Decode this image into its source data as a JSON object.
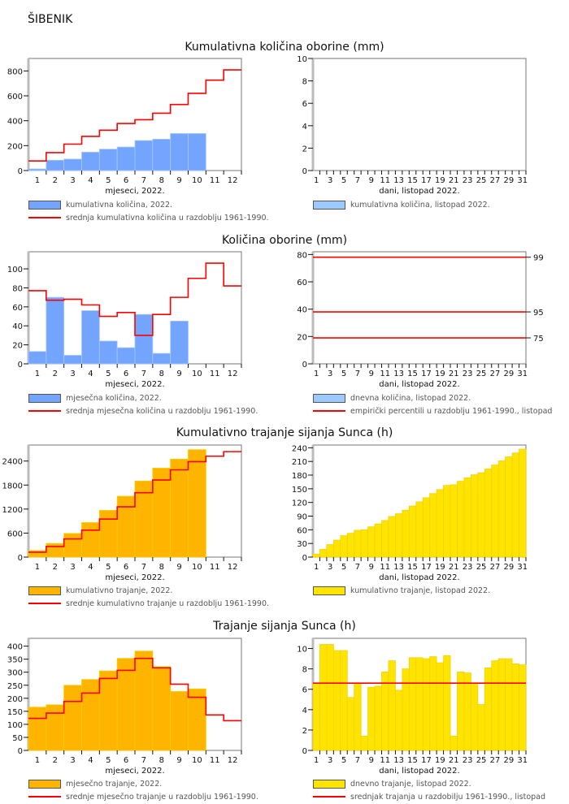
{
  "station": "ŠIBENIK",
  "colors": {
    "precip_bar": "#73a5ff",
    "precip_bar_light": "#9ccaff",
    "sun_monthly_bar": "#ffb400",
    "sun_daily_bar": "#ffe400",
    "mean_line": "#ff0000",
    "frame": "#777777"
  },
  "sections": [
    {
      "title": "Kumulativna količina oborine (mm)"
    },
    {
      "title": "Količina oborine (mm)"
    },
    {
      "title": "Kumulativno trajanje sijanja Sunca (h)"
    },
    {
      "title": "Trajanje sijanja Sunca (h)"
    }
  ],
  "chart_data": [
    {
      "id": "cum-precip-monthly",
      "type": "bar",
      "title": "Kumulativna količina oborine (mm)",
      "xlabel": "mjeseci, 2022.",
      "ylabel": "",
      "categories": [
        "1",
        "2",
        "3",
        "4",
        "5",
        "6",
        "7",
        "8",
        "9",
        "10",
        "11",
        "12"
      ],
      "ylim": [
        0,
        900
      ],
      "yticks": [
        0,
        200,
        400,
        600,
        800
      ],
      "series": [
        {
          "name": "kumulativna količina, 2022.",
          "kind": "bar",
          "color": "#73a5ff",
          "values": [
            13,
            83,
            92,
            148,
            172,
            189,
            241,
            252,
            297,
            297,
            null,
            null
          ]
        },
        {
          "name": "srednja kumulativna količina u razdoblju 1961-1990.",
          "kind": "step",
          "color": "#ff0000",
          "values": [
            77,
            144,
            212,
            274,
            324,
            378,
            408,
            460,
            530,
            620,
            726,
            808
          ]
        }
      ],
      "legend": [
        "kumulativna količina, 2022.",
        "srednja kumulativna količina u razdoblju 1961-1990."
      ],
      "grid": false
    },
    {
      "id": "cum-precip-daily",
      "type": "bar",
      "xlabel": "dani, listopad 2022.",
      "categories_count": 31,
      "xtick_labels": [
        "1",
        "3",
        "5",
        "7",
        "9",
        "11",
        "13",
        "15",
        "17",
        "19",
        "21",
        "23",
        "25",
        "27",
        "29",
        "31"
      ],
      "ylim": [
        0,
        10
      ],
      "yticks": [
        0,
        2,
        4,
        6,
        8,
        10
      ],
      "series": [
        {
          "name": "kumulativna količina, listopad 2022.",
          "kind": "bar",
          "color": "#9ccaff",
          "values": []
        }
      ],
      "legend": [
        "kumulativna količina, listopad 2022."
      ],
      "grid": false
    },
    {
      "id": "precip-monthly",
      "type": "bar",
      "title": "Količina oborine (mm)",
      "xlabel": "mjeseci, 2022.",
      "categories": [
        "1",
        "2",
        "3",
        "4",
        "5",
        "6",
        "7",
        "8",
        "9",
        "10",
        "11",
        "12"
      ],
      "ylim": [
        0,
        118
      ],
      "yticks": [
        0,
        20,
        40,
        60,
        80,
        100
      ],
      "series": [
        {
          "name": "mjesečna količina, 2022.",
          "kind": "bar",
          "color": "#73a5ff",
          "values": [
            13,
            70,
            9,
            56,
            24,
            17,
            52,
            11,
            45,
            0,
            null,
            null
          ]
        },
        {
          "name": "srednja mjesečna količina u razdoblju 1961-1990.",
          "kind": "step",
          "color": "#ff0000",
          "values": [
            77,
            67,
            68,
            62,
            50,
            54,
            30,
            52,
            70,
            90,
            106,
            82
          ]
        }
      ],
      "legend": [
        "mjesečna količina, 2022.",
        "srednja mjesečna količina u razdoblju 1961-1990."
      ],
      "grid": false
    },
    {
      "id": "precip-daily",
      "type": "bar",
      "xlabel": "dani, listopad 2022.",
      "categories_count": 31,
      "xtick_labels": [
        "1",
        "3",
        "5",
        "7",
        "9",
        "11",
        "13",
        "15",
        "17",
        "19",
        "21",
        "23",
        "25",
        "27",
        "29",
        "31"
      ],
      "ylim": [
        0,
        82
      ],
      "yticks": [
        0,
        20,
        40,
        60,
        80
      ],
      "series": [
        {
          "name": "dnevna količina, listopad 2022.",
          "kind": "bar",
          "color": "#9ccaff",
          "values": []
        }
      ],
      "hlines": [
        {
          "value": 78,
          "label": "99"
        },
        {
          "value": 38,
          "label": "95"
        },
        {
          "value": 19,
          "label": "75"
        }
      ],
      "legend": [
        "dnevna količina, listopad 2022.",
        "empirički percentili u razdoblju 1961-1990., listopad"
      ],
      "grid": false
    },
    {
      "id": "cum-sun-monthly",
      "type": "bar",
      "title": "Kumulativno trajanje sijanja Sunca (h)",
      "xlabel": "mjeseci, 2022.",
      "categories": [
        "1",
        "2",
        "3",
        "4",
        "5",
        "6",
        "7",
        "8",
        "9",
        "10",
        "11",
        "12"
      ],
      "ylim": [
        0,
        2800
      ],
      "yticks": [
        0,
        600,
        1200,
        1800,
        2400
      ],
      "series": [
        {
          "name": "kumulativno trajanje, 2022.",
          "kind": "bar",
          "color": "#ffb400",
          "values": [
            166,
            341,
            591,
            863,
            1168,
            1521,
            1902,
            2223,
            2449,
            2685,
            null,
            null
          ]
        },
        {
          "name": "srednje kumulativno trajanje u razdoblju 1961-1990.",
          "kind": "step",
          "color": "#ff0000",
          "values": [
            123,
            266,
            454,
            674,
            950,
            1257,
            1610,
            1927,
            2181,
            2385,
            2521,
            2635
          ]
        }
      ],
      "legend": [
        "kumulativno trajanje, 2022.",
        "srednje kumulativno trajanje u razdoblju 1961-1990."
      ],
      "grid": false
    },
    {
      "id": "cum-sun-daily",
      "type": "bar",
      "xlabel": "dani, listopad 2022.",
      "categories_count": 31,
      "xtick_labels": [
        "1",
        "3",
        "5",
        "7",
        "9",
        "11",
        "13",
        "15",
        "17",
        "19",
        "21",
        "23",
        "25",
        "27",
        "29",
        "31"
      ],
      "ylim": [
        0,
        246
      ],
      "yticks": [
        0,
        30,
        60,
        90,
        120,
        150,
        180,
        210,
        240
      ],
      "series": [
        {
          "name": "kumulativno trajanje, listopad 2022.",
          "kind": "bar",
          "color": "#ffe400",
          "values": [
            6.6,
            17.0,
            27.4,
            37.2,
            47.0,
            52.2,
            58.8,
            60.2,
            66.4,
            72.7,
            80.4,
            89.2,
            95.1,
            103.1,
            112.2,
            121.3,
            130.3,
            139.5,
            148.1,
            157.4,
            158.8,
            166.5,
            174.1,
            180.7,
            185.2,
            193.3,
            202.1,
            211.1,
            220.1,
            228.6,
            237.0
          ]
        }
      ],
      "legend": [
        "kumulativno trajanje, listopad 2022."
      ],
      "grid": false
    },
    {
      "id": "sun-monthly",
      "type": "bar",
      "title": "Trajanje sijanja Sunca (h)",
      "xlabel": "mjeseci, 2022.",
      "categories": [
        "1",
        "2",
        "3",
        "4",
        "5",
        "6",
        "7",
        "8",
        "9",
        "10",
        "11",
        "12"
      ],
      "ylim": [
        0,
        430
      ],
      "yticks": [
        0,
        50,
        100,
        150,
        200,
        250,
        300,
        350,
        400
      ],
      "series": [
        {
          "name": "mjesečno trajanje, 2022.",
          "kind": "bar",
          "color": "#ffb400",
          "values": [
            166,
            175,
            250,
            272,
            305,
            353,
            381,
            321,
            226,
            236,
            null,
            null
          ]
        },
        {
          "name": "srednje mjesečno trajanje u razdoblju 1961-1990.",
          "kind": "step",
          "color": "#ff0000",
          "values": [
            123,
            143,
            188,
            220,
            276,
            307,
            353,
            317,
            254,
            204,
            136,
            114
          ]
        }
      ],
      "legend": [
        "mjesečno trajanje, 2022.",
        "srednje mjesečno trajanje u razdoblju 1961-1990."
      ],
      "grid": false
    },
    {
      "id": "sun-daily",
      "type": "bar",
      "xlabel": "dani, listopad 2022.",
      "categories_count": 31,
      "xtick_labels": [
        "1",
        "3",
        "5",
        "7",
        "9",
        "11",
        "13",
        "15",
        "17",
        "19",
        "21",
        "23",
        "25",
        "27",
        "29",
        "31"
      ],
      "ylim": [
        0,
        11
      ],
      "yticks": [
        0,
        2,
        4,
        6,
        8,
        10
      ],
      "series": [
        {
          "name": "dnevno trajanje, listopad 2022.",
          "kind": "bar",
          "color": "#ffe400",
          "values": [
            6.6,
            10.4,
            10.4,
            9.8,
            9.8,
            5.2,
            6.6,
            1.4,
            6.2,
            6.3,
            7.7,
            8.8,
            5.9,
            8.0,
            9.1,
            9.1,
            9.0,
            9.2,
            8.6,
            9.3,
            1.4,
            7.7,
            7.6,
            6.6,
            4.5,
            8.1,
            8.8,
            9.0,
            9.0,
            8.5,
            8.4
          ]
        }
      ],
      "hlines": [
        {
          "value": 6.6,
          "label": ""
        }
      ],
      "legend": [
        "dnevno trajanje, listopad 2022.",
        "srednjak trajanja u razdobilju 1961-1990., listopad"
      ],
      "grid": false
    }
  ]
}
